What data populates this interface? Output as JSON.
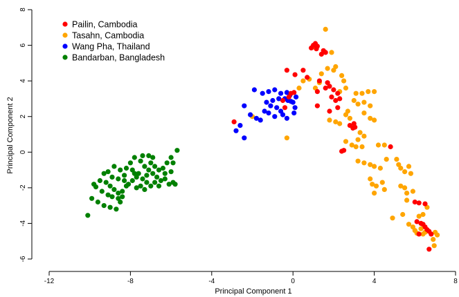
{
  "chart_data": {
    "type": "scatter",
    "xlabel": "Principal Component 1",
    "ylabel": "Principal Component 2",
    "xlim": [
      -12,
      8
    ],
    "ylim": [
      -6.5,
      8
    ],
    "xticks": [
      -12,
      -8,
      -4,
      0,
      4,
      8
    ],
    "yticks": [
      -6,
      -4,
      -2,
      0,
      2,
      4,
      6,
      8
    ],
    "grid": false,
    "legend_position": "top-left",
    "series": [
      {
        "name": "Pailin, Cambodia",
        "color": "#ff0000",
        "points": [
          [
            1.0,
            6.0
          ],
          [
            1.1,
            6.1
          ],
          [
            1.2,
            5.95
          ],
          [
            0.9,
            5.85
          ],
          [
            1.15,
            5.8
          ],
          [
            1.5,
            5.7
          ],
          [
            1.6,
            5.6
          ],
          [
            1.4,
            5.5
          ],
          [
            -0.3,
            4.6
          ],
          [
            0.1,
            4.35
          ],
          [
            0.5,
            4.6
          ],
          [
            0.7,
            4.2
          ],
          [
            1.3,
            4.0
          ],
          [
            1.7,
            3.9
          ],
          [
            1.8,
            3.7
          ],
          [
            1.6,
            3.6
          ],
          [
            2.0,
            3.5
          ],
          [
            2.2,
            3.3
          ],
          [
            2.3,
            3.0
          ],
          [
            1.2,
            3.4
          ],
          [
            1.9,
            3.1
          ],
          [
            2.1,
            2.9
          ],
          [
            1.2,
            2.6
          ],
          [
            2.2,
            2.5
          ],
          [
            1.8,
            2.3
          ],
          [
            -0.4,
            2.5
          ],
          [
            -0.5,
            2.9
          ],
          [
            -0.2,
            3.1
          ],
          [
            0.05,
            3.35
          ],
          [
            -0.1,
            3.3
          ],
          [
            -2.9,
            1.7
          ],
          [
            2.8,
            1.5
          ],
          [
            3.0,
            1.6
          ],
          [
            2.95,
            1.35
          ],
          [
            3.05,
            1.4
          ],
          [
            2.4,
            0.05
          ],
          [
            2.5,
            0.1
          ],
          [
            4.8,
            0.3
          ],
          [
            6.0,
            -2.8
          ],
          [
            6.2,
            -2.85
          ],
          [
            6.5,
            -2.9
          ],
          [
            6.1,
            -3.9
          ],
          [
            6.3,
            -4.0
          ],
          [
            6.4,
            -4.05
          ],
          [
            6.5,
            -4.2
          ],
          [
            6.6,
            -4.35
          ],
          [
            6.7,
            -4.45
          ],
          [
            6.8,
            -4.6
          ],
          [
            6.2,
            -4.6
          ],
          [
            6.7,
            -5.45
          ]
        ]
      },
      {
        "name": "Tasahn, Cambodia",
        "color": "#ffa500",
        "points": [
          [
            1.6,
            6.9
          ],
          [
            1.0,
            5.9
          ],
          [
            1.9,
            5.6
          ],
          [
            2.0,
            4.6
          ],
          [
            2.1,
            4.8
          ],
          [
            1.7,
            4.7
          ],
          [
            1.4,
            4.4
          ],
          [
            0.5,
            4.0
          ],
          [
            0.8,
            4.1
          ],
          [
            2.4,
            4.3
          ],
          [
            2.5,
            4.0
          ],
          [
            2.6,
            3.6
          ],
          [
            2.3,
            3.4
          ],
          [
            3.1,
            3.3
          ],
          [
            3.4,
            3.3
          ],
          [
            3.7,
            3.4
          ],
          [
            4.0,
            3.4
          ],
          [
            1.1,
            3.6
          ],
          [
            1.3,
            3.9
          ],
          [
            0.3,
            3.6
          ],
          [
            3.0,
            2.9
          ],
          [
            3.2,
            2.7
          ],
          [
            3.5,
            2.8
          ],
          [
            3.8,
            2.6
          ],
          [
            2.7,
            2.3
          ],
          [
            2.6,
            2.1
          ],
          [
            3.5,
            2.2
          ],
          [
            2.8,
            1.9
          ],
          [
            1.8,
            1.8
          ],
          [
            2.1,
            1.7
          ],
          [
            2.3,
            1.6
          ],
          [
            3.8,
            1.9
          ],
          [
            4.0,
            1.8
          ],
          [
            -2.0,
            2.0
          ],
          [
            -0.3,
            0.8
          ],
          [
            3.3,
            1.1
          ],
          [
            3.5,
            0.9
          ],
          [
            3.2,
            0.7
          ],
          [
            2.6,
            0.6
          ],
          [
            2.9,
            0.4
          ],
          [
            3.1,
            0.3
          ],
          [
            3.4,
            0.3
          ],
          [
            4.2,
            0.4
          ],
          [
            4.5,
            0.4
          ],
          [
            3.2,
            -0.5
          ],
          [
            3.5,
            -0.6
          ],
          [
            3.8,
            -0.7
          ],
          [
            4.0,
            -0.8
          ],
          [
            4.3,
            -0.9
          ],
          [
            4.6,
            -0.4
          ],
          [
            5.1,
            -0.4
          ],
          [
            5.2,
            -0.7
          ],
          [
            5.3,
            -0.9
          ],
          [
            5.5,
            -1.1
          ],
          [
            5.7,
            -0.8
          ],
          [
            5.8,
            -1.2
          ],
          [
            3.8,
            -1.5
          ],
          [
            3.9,
            -1.8
          ],
          [
            4.1,
            -1.9
          ],
          [
            4.4,
            -1.7
          ],
          [
            4.5,
            -2.1
          ],
          [
            4.0,
            -2.3
          ],
          [
            5.3,
            -1.9
          ],
          [
            5.5,
            -2.0
          ],
          [
            5.6,
            -2.3
          ],
          [
            5.9,
            -2.2
          ],
          [
            5.6,
            -2.7
          ],
          [
            5.4,
            -3.5
          ],
          [
            6.2,
            -3.6
          ],
          [
            6.4,
            -3.5
          ],
          [
            6.6,
            -3.1
          ],
          [
            4.9,
            -3.7
          ],
          [
            5.7,
            -4.05
          ],
          [
            5.9,
            -4.2
          ],
          [
            6.0,
            -4.4
          ],
          [
            6.1,
            -4.55
          ],
          [
            6.4,
            -4.6
          ],
          [
            6.3,
            -4.3
          ],
          [
            6.5,
            -4.5
          ],
          [
            7.0,
            -4.5
          ],
          [
            6.9,
            -4.9
          ],
          [
            7.1,
            -4.65
          ],
          [
            6.95,
            -5.25
          ]
        ]
      },
      {
        "name": "Wang Pha, Thailand",
        "color": "#0000ff",
        "points": [
          [
            -1.9,
            3.5
          ],
          [
            -1.5,
            3.3
          ],
          [
            -1.2,
            3.4
          ],
          [
            -0.9,
            3.5
          ],
          [
            -0.6,
            3.3
          ],
          [
            -0.3,
            3.35
          ],
          [
            -0.15,
            3.2
          ],
          [
            -0.4,
            3.0
          ],
          [
            -0.25,
            2.9
          ],
          [
            -0.1,
            2.85
          ],
          [
            0.15,
            3.1
          ],
          [
            -0.7,
            3.0
          ],
          [
            -1.0,
            2.9
          ],
          [
            -1.3,
            2.8
          ],
          [
            -1.1,
            2.6
          ],
          [
            -0.8,
            2.5
          ],
          [
            -0.6,
            2.3
          ],
          [
            -0.5,
            2.1
          ],
          [
            -0.9,
            2.0
          ],
          [
            -1.4,
            2.3
          ],
          [
            -1.2,
            2.2
          ],
          [
            -0.3,
            1.9
          ],
          [
            0.05,
            2.2
          ],
          [
            0.1,
            2.5
          ],
          [
            -2.4,
            2.6
          ],
          [
            -2.1,
            2.1
          ],
          [
            -1.8,
            1.9
          ],
          [
            -1.6,
            1.8
          ],
          [
            -2.6,
            1.5
          ],
          [
            -2.8,
            1.2
          ],
          [
            -2.4,
            0.8
          ],
          [
            0.0,
            2.8
          ]
        ]
      },
      {
        "name": "Bandarban, Bangladesh",
        "color": "#008000",
        "points": [
          [
            -10.1,
            -3.55
          ],
          [
            -9.9,
            -2.6
          ],
          [
            -9.6,
            -2.8
          ],
          [
            -9.3,
            -3.0
          ],
          [
            -9.0,
            -3.1
          ],
          [
            -8.7,
            -3.2
          ],
          [
            -8.5,
            -2.8
          ],
          [
            -9.7,
            -1.95
          ],
          [
            -9.8,
            -1.8
          ],
          [
            -9.5,
            -1.6
          ],
          [
            -9.2,
            -1.7
          ],
          [
            -9.0,
            -1.9
          ],
          [
            -8.8,
            -2.1
          ],
          [
            -8.6,
            -2.3
          ],
          [
            -9.4,
            -2.2
          ],
          [
            -9.1,
            -2.4
          ],
          [
            -8.9,
            -2.5
          ],
          [
            -8.6,
            -2.6
          ],
          [
            -8.4,
            -2.2
          ],
          [
            -8.2,
            -1.9
          ],
          [
            -8.9,
            -1.4
          ],
          [
            -8.6,
            -1.5
          ],
          [
            -8.3,
            -1.6
          ],
          [
            -8.1,
            -1.8
          ],
          [
            -7.9,
            -1.6
          ],
          [
            -7.7,
            -1.4
          ],
          [
            -8.5,
            -1.0
          ],
          [
            -8.2,
            -0.9
          ],
          [
            -7.9,
            -1.0
          ],
          [
            -7.6,
            -1.2
          ],
          [
            -7.4,
            -1.5
          ],
          [
            -7.2,
            -1.7
          ],
          [
            -7.0,
            -1.9
          ],
          [
            -7.5,
            -1.9
          ],
          [
            -7.7,
            -2.0
          ],
          [
            -7.3,
            -2.1
          ],
          [
            -8.0,
            -0.6
          ],
          [
            -7.8,
            -0.3
          ],
          [
            -7.5,
            -0.5
          ],
          [
            -7.3,
            -0.8
          ],
          [
            -7.1,
            -1.0
          ],
          [
            -6.9,
            -1.2
          ],
          [
            -6.7,
            -1.4
          ],
          [
            -6.5,
            -1.6
          ],
          [
            -6.3,
            -1.5
          ],
          [
            -6.1,
            -1.8
          ],
          [
            -5.9,
            -1.7
          ],
          [
            -5.8,
            -1.8
          ],
          [
            -7.0,
            -0.6
          ],
          [
            -6.8,
            -0.8
          ],
          [
            -6.6,
            -1.0
          ],
          [
            -6.4,
            -0.9
          ],
          [
            -6.2,
            -0.6
          ],
          [
            -6.0,
            -0.3
          ],
          [
            -5.7,
            0.1
          ],
          [
            -5.9,
            -0.6
          ],
          [
            -6.0,
            -1.1
          ],
          [
            -7.1,
            -0.2
          ],
          [
            -6.9,
            -0.3
          ],
          [
            -7.4,
            -0.2
          ],
          [
            -8.3,
            -1.3
          ],
          [
            -7.8,
            -1.2
          ],
          [
            -9.3,
            -1.2
          ],
          [
            -9.1,
            -1.1
          ],
          [
            -8.8,
            -0.8
          ],
          [
            -6.8,
            -1.7
          ],
          [
            -6.6,
            -1.9
          ],
          [
            -6.3,
            -1.2
          ],
          [
            -7.2,
            -1.3
          ],
          [
            -8.4,
            -2.5
          ]
        ]
      }
    ]
  }
}
